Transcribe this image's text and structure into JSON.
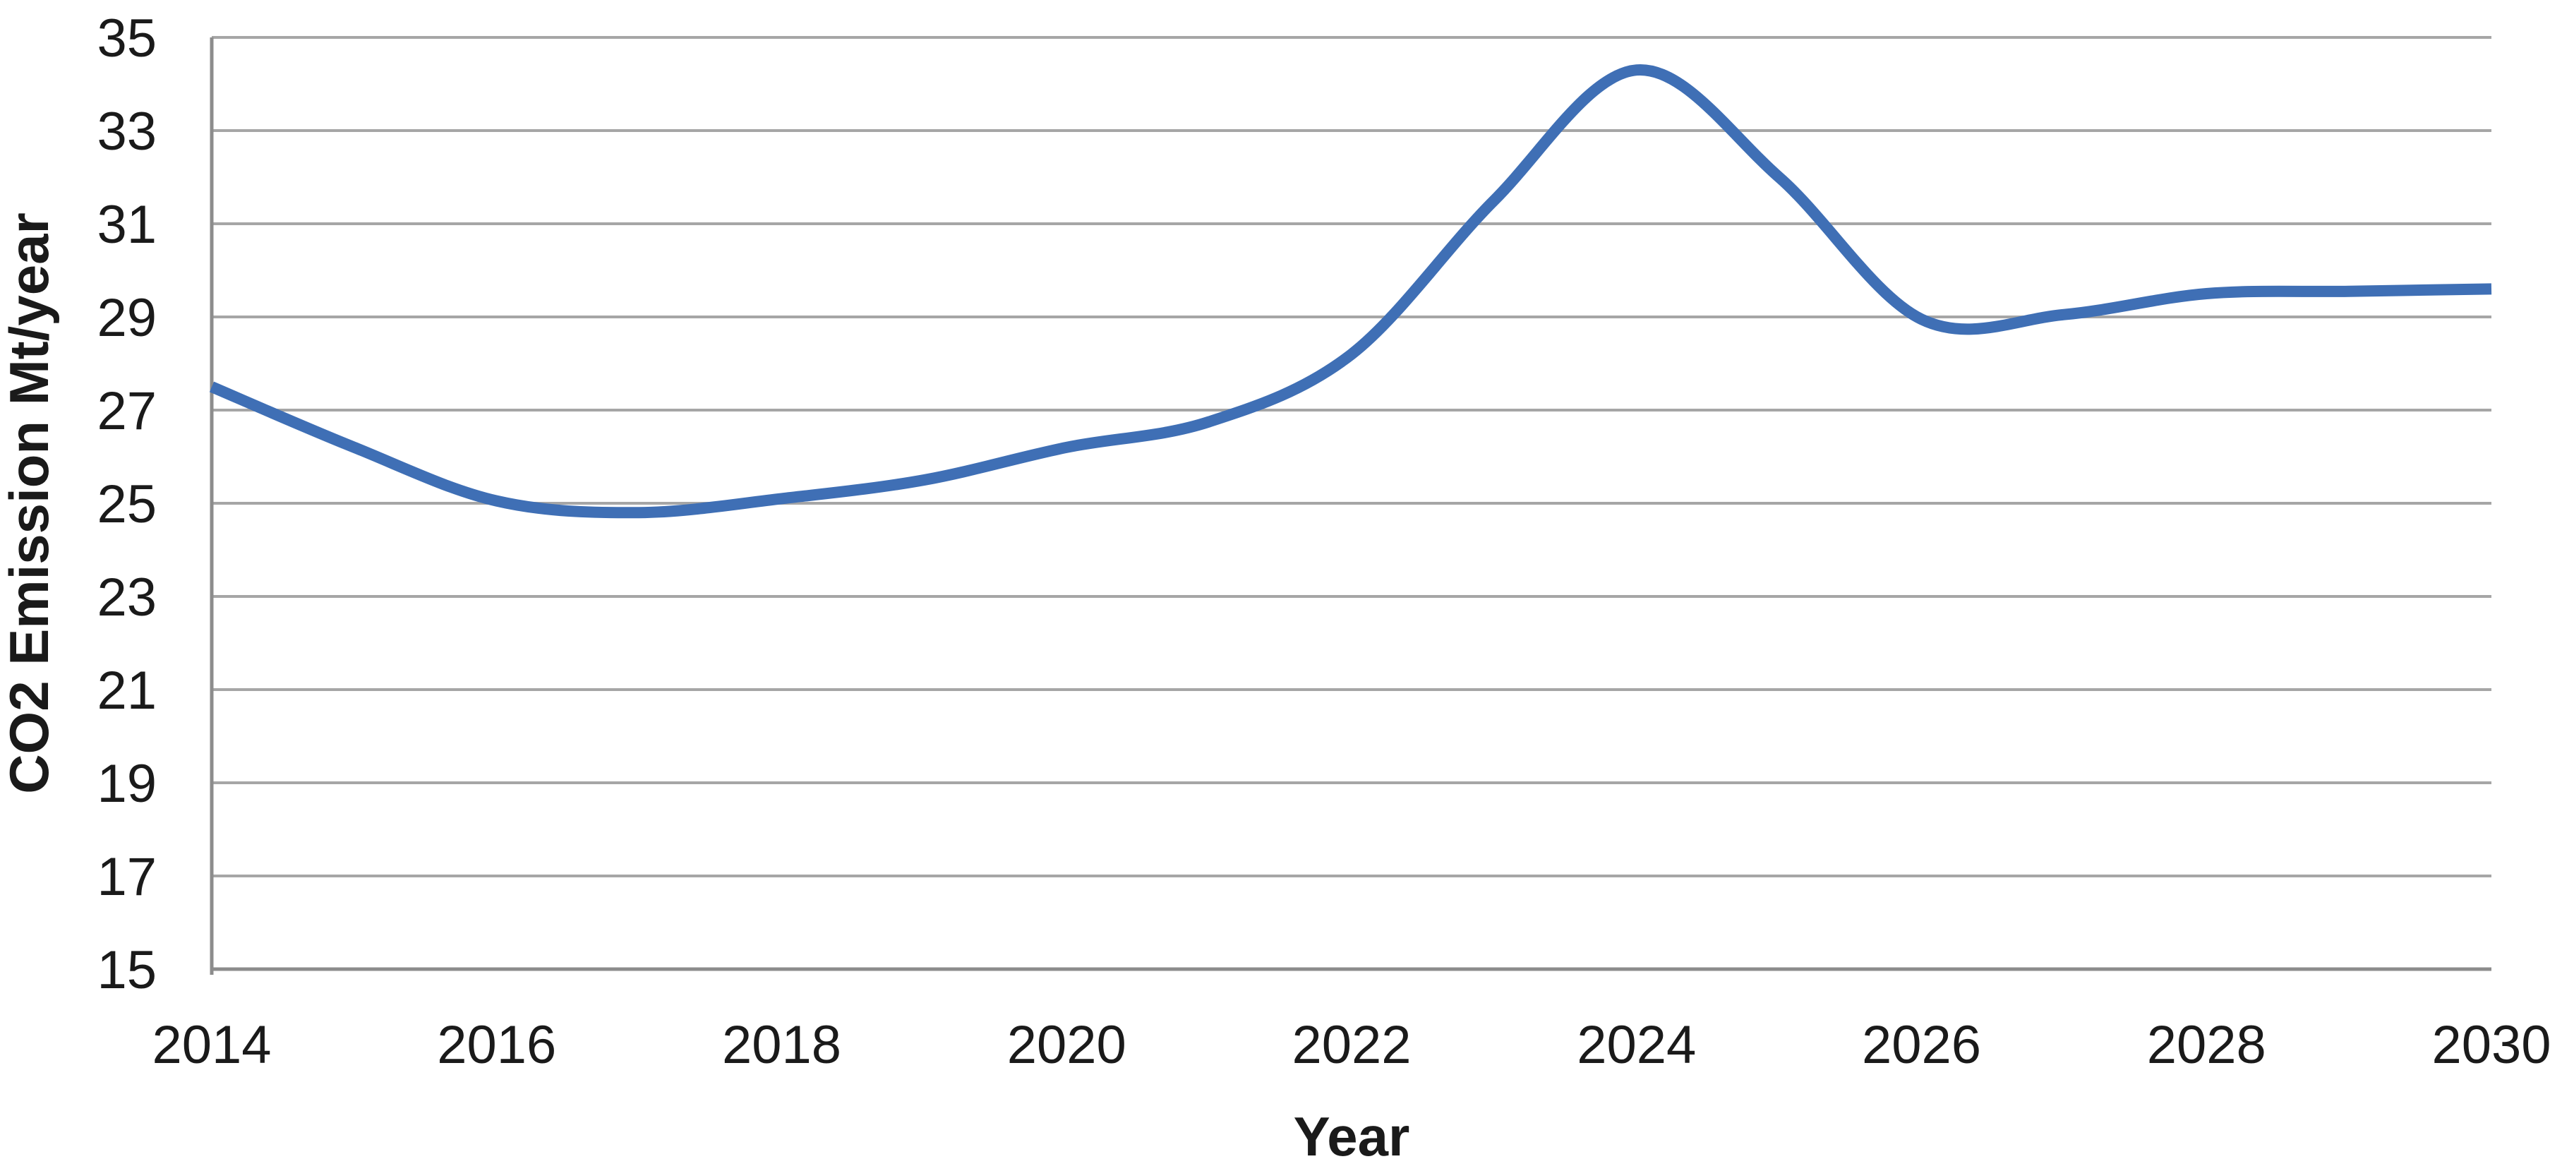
{
  "chart_data": {
    "type": "line",
    "smooth": true,
    "x": [
      2014,
      2015,
      2016,
      2017,
      2018,
      2019,
      2020,
      2021,
      2022,
      2023,
      2024,
      2025,
      2026,
      2027,
      2028,
      2029,
      2030
    ],
    "values": [
      27.5,
      26.2,
      25.05,
      24.8,
      25.1,
      25.5,
      26.2,
      26.75,
      28.2,
      31.5,
      34.3,
      32.0,
      28.95,
      29.05,
      29.5,
      29.55,
      29.6
    ],
    "xlabel": "Year",
    "ylabel": "CO2 Emission Mt/year",
    "xlim": [
      2014,
      2030
    ],
    "ylim": [
      15,
      35
    ],
    "xticks": [
      2014,
      2016,
      2018,
      2020,
      2022,
      2024,
      2026,
      2028,
      2030
    ],
    "yticks": [
      15,
      17,
      19,
      21,
      23,
      25,
      27,
      29,
      31,
      33,
      35
    ],
    "grid": "horizontal",
    "legend_position": "none",
    "colors": {
      "line": "#3F6FB5",
      "grid": "#A6A6A6",
      "axis": "#8C8C8C",
      "text": "#1A1A1A",
      "background": "#FFFFFF"
    }
  }
}
